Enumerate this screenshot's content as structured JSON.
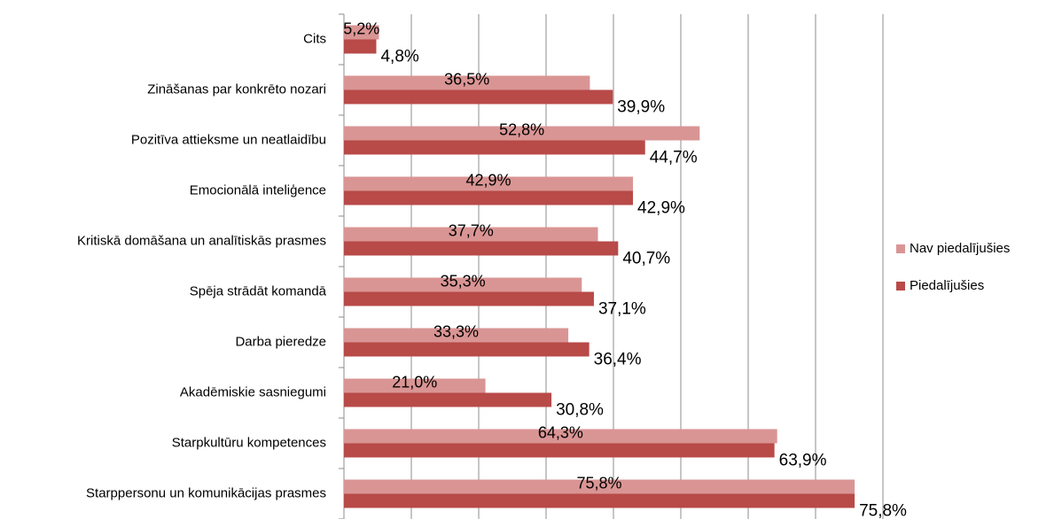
{
  "chart_data": {
    "type": "bar",
    "orientation": "horizontal",
    "categories": [
      "Cits",
      "Zināšanas par konkrēto nozari",
      "Pozitīva attieksme un neatlaidību",
      "Emocionālā inteliģence",
      "Kritiskā domāšana un analītiskās prasmes",
      "Spēja strādāt komandā",
      "Darba pieredze",
      "Akadēmiskie sasniegumi",
      "Starpkultūru kompetences",
      "Starppersonu un komunikācijas prasmes"
    ],
    "series": [
      {
        "name": "Nav piedalījušies",
        "color": "#d99594",
        "values": [
          5.2,
          36.5,
          52.8,
          42.9,
          37.7,
          35.3,
          33.3,
          21.0,
          64.3,
          75.8
        ],
        "value_labels": [
          "5,2%",
          "36,5%",
          "52,8%",
          "42,9%",
          "37,7%",
          "35,3%",
          "33,3%",
          "21,0%",
          "64,3%",
          "75,8%"
        ]
      },
      {
        "name": "Piedalījušies",
        "color": "#b84a48",
        "values": [
          4.8,
          39.9,
          44.7,
          42.9,
          40.7,
          37.1,
          36.4,
          30.8,
          63.9,
          75.8
        ],
        "value_labels": [
          "4,8%",
          "39,9%",
          "44,7%",
          "42,9%",
          "40,7%",
          "37,1%",
          "36,4%",
          "30,8%",
          "63,9%",
          "75,8%"
        ]
      }
    ],
    "xlim": [
      0,
      80
    ],
    "xticks": [
      0,
      10,
      20,
      30,
      40,
      50,
      60,
      70,
      80
    ],
    "grid": true,
    "legend": "right"
  }
}
